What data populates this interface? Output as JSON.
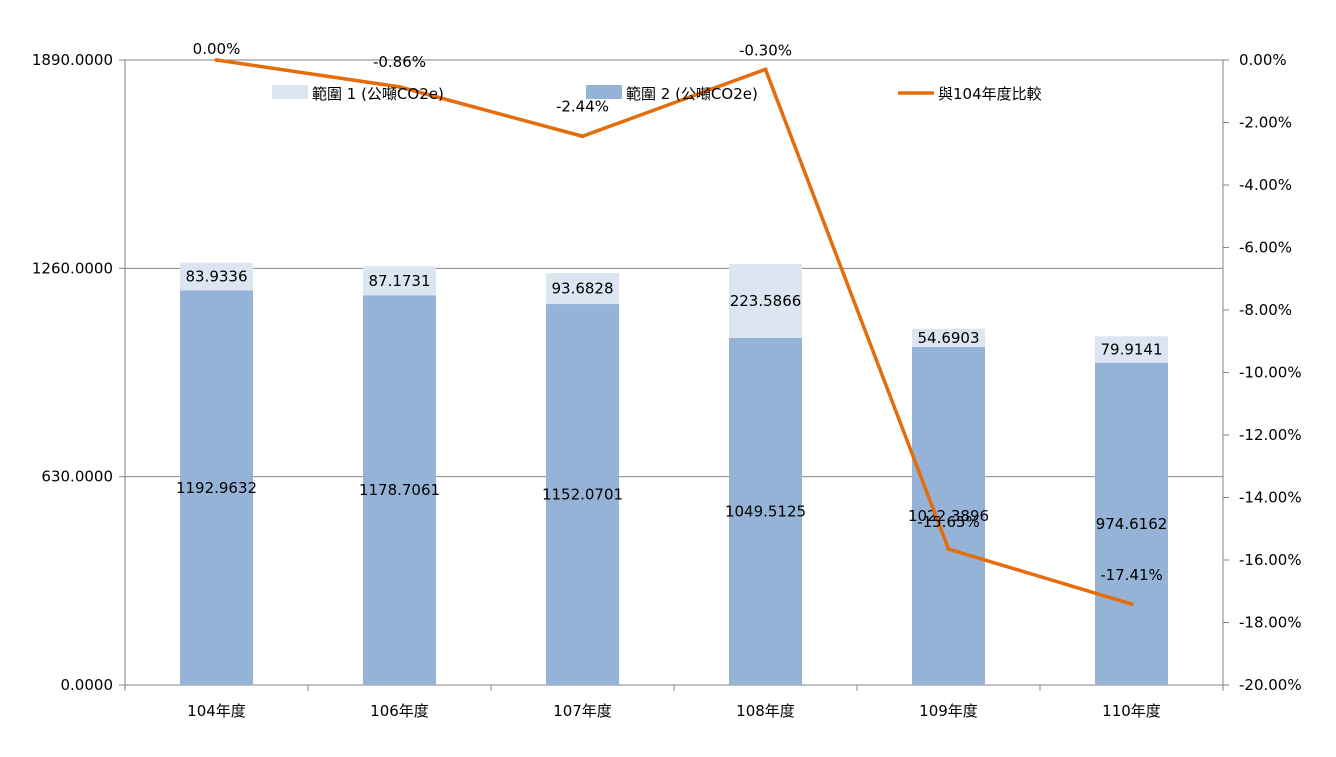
{
  "chart_data": {
    "type": "bar",
    "stacked": true,
    "categories": [
      "104年度",
      "106年度",
      "107年度",
      "108年度",
      "109年度",
      "110年度"
    ],
    "series": [
      {
        "name": "範圍 2 (公噸CO2e)",
        "type": "bar",
        "axis": "left",
        "color": "#95b3d7",
        "values": [
          1192.9632,
          1178.7061,
          1152.0701,
          1049.5125,
          1022.3896,
          974.6162
        ],
        "labels": [
          "1192.9632",
          "1178.7061",
          "1152.0701",
          "1049.5125",
          "1022.3896",
          "974.6162"
        ]
      },
      {
        "name": "範圍 1 (公噸CO2e)",
        "type": "bar",
        "axis": "left",
        "color": "#dce6f2",
        "values": [
          83.9336,
          87.1731,
          93.6828,
          223.5866,
          54.6903,
          79.9141
        ],
        "labels": [
          "83.9336",
          "87.1731",
          "93.6828",
          "223.5866",
          "54.6903",
          "79.9141"
        ]
      },
      {
        "name": "與104年度比較",
        "type": "line",
        "axis": "right",
        "color": "#e46c0a",
        "values": [
          0.0,
          -0.86,
          -2.44,
          -0.3,
          -15.65,
          -17.41
        ],
        "labels": [
          "0.00%",
          "-0.86%",
          "-2.44%",
          "-0.30%",
          "-15.65%",
          "-17.41%"
        ]
      }
    ],
    "legend_order": [
      1,
      0,
      2
    ],
    "legend_position": "top",
    "y_left": {
      "ylim": [
        0,
        1890
      ],
      "ticks": [
        0,
        630,
        1260,
        1890
      ],
      "tick_labels": [
        "0.0000",
        "630.0000",
        "1260.0000",
        "1890.0000"
      ]
    },
    "y_right": {
      "ylim": [
        -20,
        0
      ],
      "ticks": [
        0,
        -2,
        -4,
        -6,
        -8,
        -10,
        -12,
        -14,
        -16,
        -18,
        -20
      ],
      "tick_labels": [
        "0.00%",
        "-2.00%",
        "-4.00%",
        "-6.00%",
        "-8.00%",
        "-10.00%",
        "-12.00%",
        "-14.00%",
        "-16.00%",
        "-18.00%",
        "-20.00%"
      ]
    },
    "grid": "horizontal (left axis major ticks)"
  }
}
